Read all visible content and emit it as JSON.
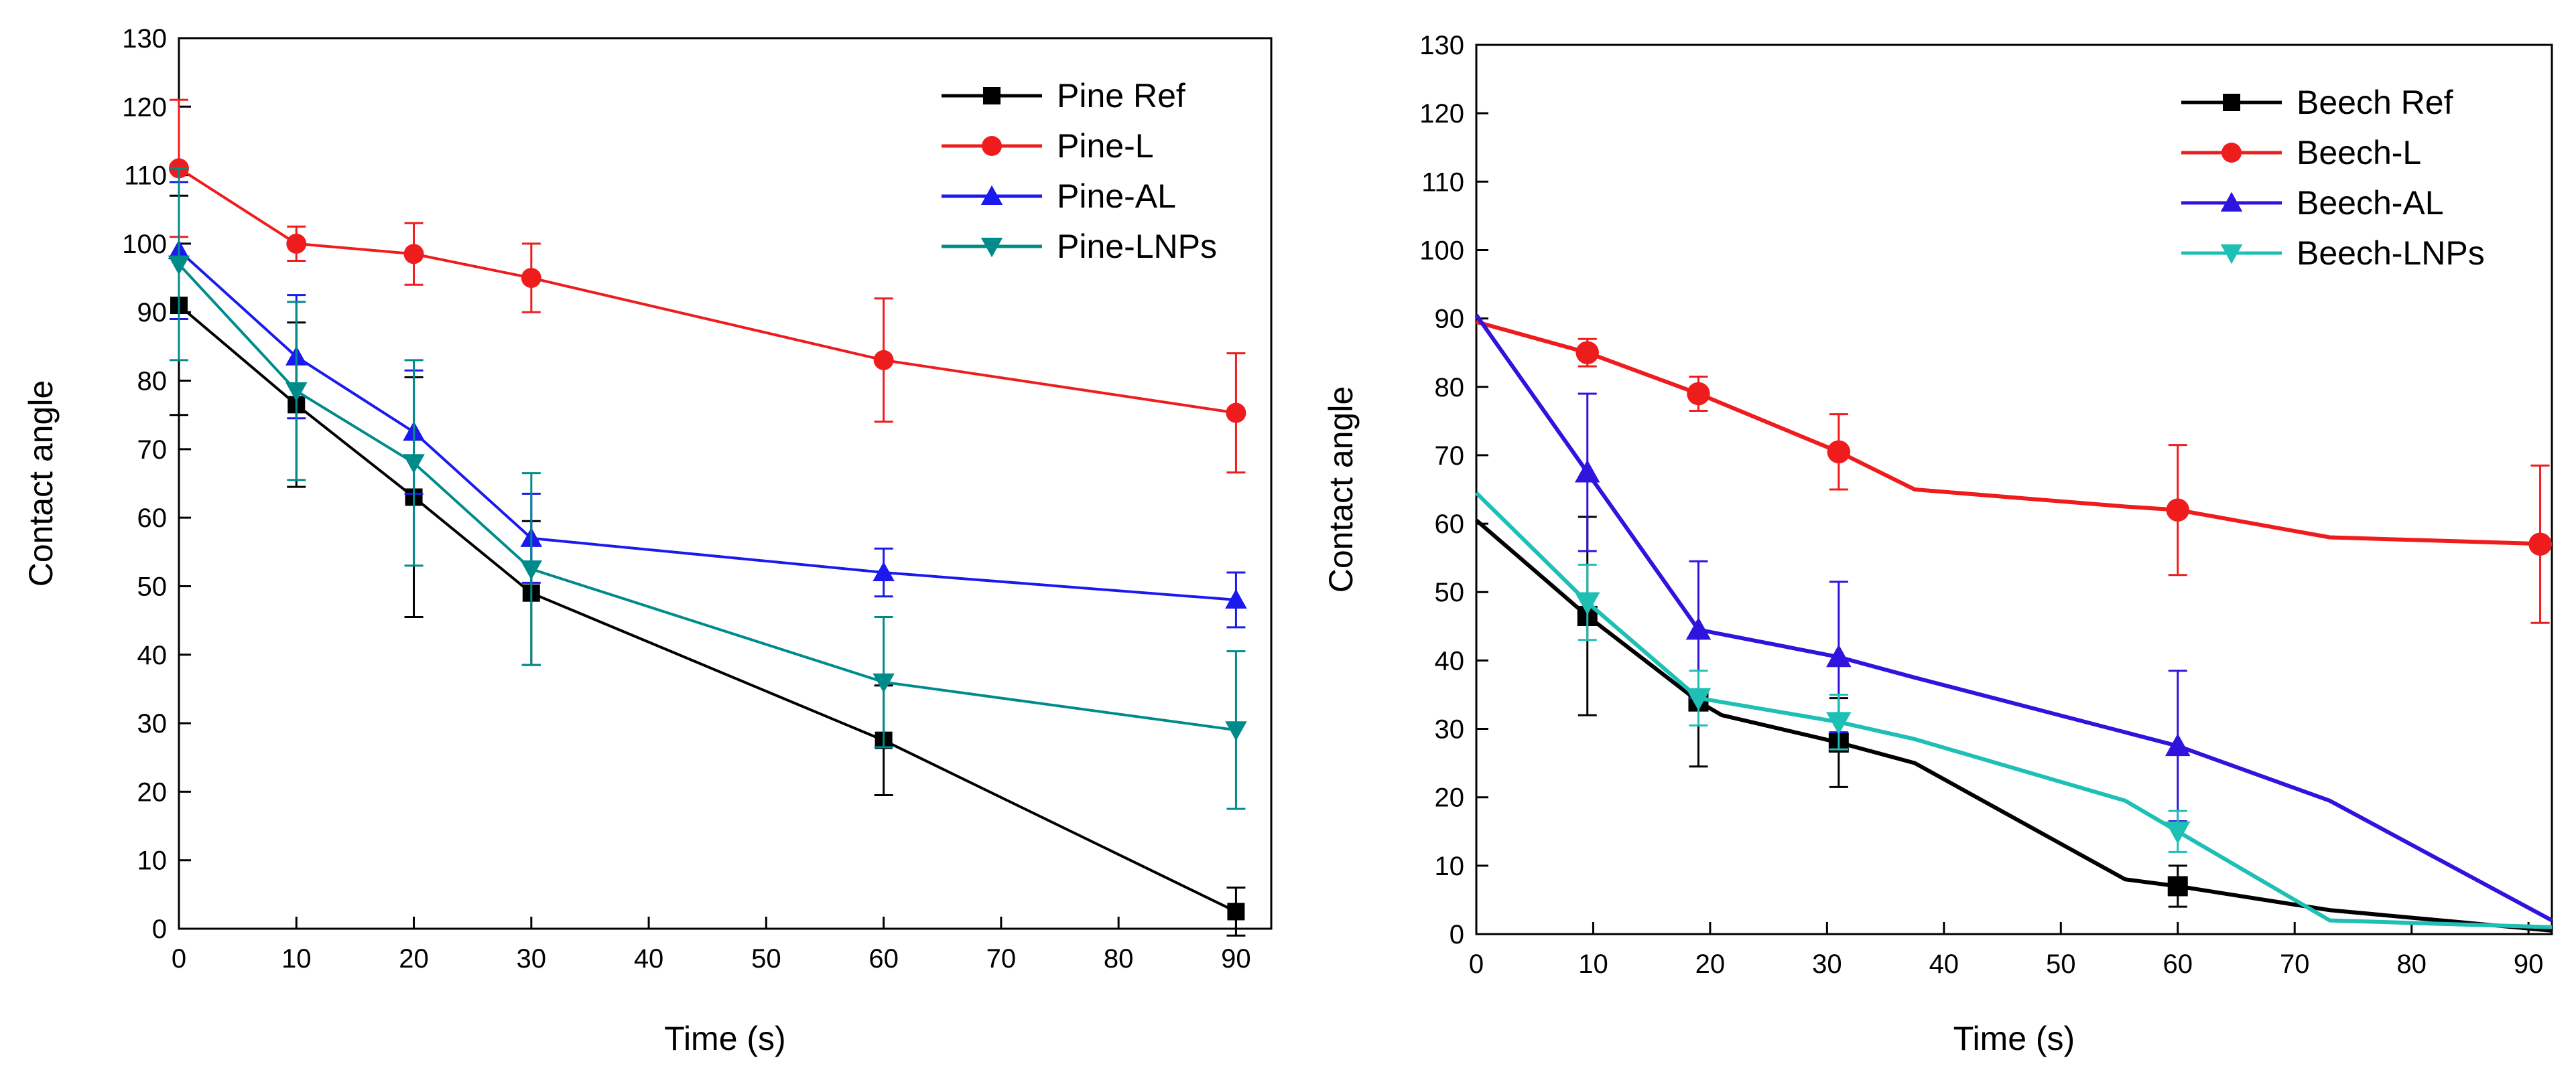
{
  "chart_data": [
    {
      "type": "line",
      "xlabel": "Time (s)",
      "ylabel": "Contact angle",
      "xlim": [
        0,
        93
      ],
      "ylim": [
        0,
        130
      ],
      "xticks": [
        0,
        10,
        20,
        30,
        40,
        50,
        60,
        70,
        80,
        90
      ],
      "yticks": [
        0,
        10,
        20,
        30,
        40,
        50,
        60,
        70,
        80,
        90,
        100,
        110,
        120,
        130
      ],
      "legend_position": "top-right",
      "grid": false,
      "series": [
        {
          "name": "Pine Ref",
          "color": "#000000",
          "marker": "square",
          "points": [
            [
              0,
              91
            ],
            [
              10,
              76.5
            ],
            [
              20,
              63
            ],
            [
              30,
              49
            ],
            [
              60,
              27.5
            ],
            [
              90,
              2.5
            ]
          ],
          "errors": [
            [
              0,
              91,
              16
            ],
            [
              10,
              76.5,
              12
            ],
            [
              20,
              63,
              17.5
            ],
            [
              30,
              49,
              10.5
            ],
            [
              60,
              27.5,
              8
            ],
            [
              90,
              2.5,
              3.5
            ]
          ]
        },
        {
          "name": "Pine-L",
          "color": "#ee1c1c",
          "marker": "circle",
          "points": [
            [
              0,
              111
            ],
            [
              10,
              100
            ],
            [
              20,
              98.5
            ],
            [
              30,
              95
            ],
            [
              60,
              83
            ],
            [
              90,
              75.3
            ]
          ],
          "errors": [
            [
              0,
              111,
              10
            ],
            [
              10,
              100,
              2.5
            ],
            [
              20,
              98.5,
              4.5
            ],
            [
              30,
              95,
              5
            ],
            [
              60,
              83,
              9
            ],
            [
              90,
              75.3,
              8.7
            ]
          ]
        },
        {
          "name": "Pine-AL",
          "color": "#1a1aee",
          "marker": "triangle-up",
          "points": [
            [
              0,
              99
            ],
            [
              10,
              83.5
            ],
            [
              20,
              72.5
            ],
            [
              30,
              57
            ],
            [
              60,
              52
            ],
            [
              90,
              48
            ]
          ],
          "errors": [
            [
              0,
              99,
              10
            ],
            [
              10,
              83.5,
              9
            ],
            [
              20,
              72.5,
              9
            ],
            [
              30,
              57,
              6.5
            ],
            [
              60,
              52,
              3.5
            ],
            [
              90,
              48,
              4
            ]
          ]
        },
        {
          "name": "Pine-LNPs",
          "color": "#008b8b",
          "marker": "triangle-down",
          "points": [
            [
              0,
              97
            ],
            [
              10,
              78.5
            ],
            [
              20,
              68
            ],
            [
              30,
              52.5
            ],
            [
              60,
              36
            ],
            [
              90,
              29
            ]
          ],
          "errors": [
            [
              0,
              97,
              14
            ],
            [
              10,
              78.5,
              13
            ],
            [
              20,
              68,
              15
            ],
            [
              30,
              52.5,
              14
            ],
            [
              60,
              36,
              9.5
            ],
            [
              90,
              29,
              11.5
            ]
          ]
        }
      ]
    },
    {
      "type": "line",
      "xlabel": "Time (s)",
      "ylabel": "Contact angle",
      "xlim": [
        0,
        92
      ],
      "ylim": [
        0,
        130
      ],
      "xticks": [
        0,
        10,
        20,
        30,
        40,
        50,
        60,
        70,
        80,
        90
      ],
      "yticks": [
        0,
        10,
        20,
        30,
        40,
        50,
        60,
        70,
        80,
        90,
        100,
        110,
        120,
        130
      ],
      "legend_position": "top-right",
      "grid": false,
      "series": [
        {
          "name": "Beech Ref",
          "color": "#000000",
          "marker": "square",
          "points": [
            [
              0,
              60.5
            ],
            [
              9.5,
              46.5
            ],
            [
              19,
              34
            ],
            [
              21,
              32
            ],
            [
              31,
              28
            ],
            [
              37.5,
              25
            ],
            [
              55.5,
              8
            ],
            [
              60,
              7
            ],
            [
              73,
              3.5
            ],
            [
              92,
              0.5
            ]
          ],
          "markers": [
            [
              9.5,
              46.5
            ],
            [
              19,
              34
            ],
            [
              31,
              28
            ],
            [
              60,
              7
            ]
          ],
          "errors": [
            [
              9.5,
              46.5,
              14.5
            ],
            [
              19,
              34,
              9.5
            ],
            [
              31,
              28,
              6.5
            ],
            [
              60,
              7,
              3
            ]
          ]
        },
        {
          "name": "Beech-L",
          "color": "#ee1c1c",
          "marker": "circle",
          "points": [
            [
              0,
              89.5
            ],
            [
              9.5,
              85
            ],
            [
              19,
              79
            ],
            [
              31,
              70.5
            ],
            [
              37.5,
              65
            ],
            [
              55.5,
              62.5
            ],
            [
              60,
              62
            ],
            [
              73,
              58
            ],
            [
              92,
              57
            ]
          ],
          "markers": [
            [
              9.5,
              85
            ],
            [
              19,
              79
            ],
            [
              31,
              70.5
            ],
            [
              60,
              62
            ],
            [
              91,
              57
            ]
          ],
          "errors": [
            [
              9.5,
              85,
              2
            ],
            [
              19,
              79,
              2.5
            ],
            [
              31,
              70.5,
              5.5
            ],
            [
              60,
              62,
              9.5
            ],
            [
              91,
              57,
              11.5
            ]
          ]
        },
        {
          "name": "Beech-AL",
          "color": "#2e14dc",
          "marker": "triangle-up",
          "points": [
            [
              0,
              90.5
            ],
            [
              9.5,
              67.5
            ],
            [
              19,
              44.5
            ],
            [
              31,
              40.5
            ],
            [
              37.5,
              37.5
            ],
            [
              55.5,
              29.5
            ],
            [
              60,
              27.5
            ],
            [
              73,
              19.5
            ],
            [
              92,
              2
            ]
          ],
          "markers": [
            [
              9.5,
              67.5
            ],
            [
              19,
              44.5
            ],
            [
              31,
              40.5
            ],
            [
              60,
              27.5
            ]
          ],
          "errors": [
            [
              9.5,
              67.5,
              11.5
            ],
            [
              19,
              44.5,
              10
            ],
            [
              31,
              40.5,
              11
            ],
            [
              60,
              27.5,
              11
            ]
          ]
        },
        {
          "name": "Beech-LNPs",
          "color": "#1ebfb4",
          "marker": "triangle-down",
          "points": [
            [
              0,
              64.5
            ],
            [
              9.5,
              48.5
            ],
            [
              19,
              34.5
            ],
            [
              31,
              31
            ],
            [
              37.5,
              28.5
            ],
            [
              55.5,
              19.5
            ],
            [
              60,
              15
            ],
            [
              73,
              2
            ],
            [
              92,
              1
            ]
          ],
          "markers": [
            [
              9.5,
              48.5
            ],
            [
              19,
              34.5
            ],
            [
              31,
              31
            ],
            [
              60,
              15
            ]
          ],
          "errors": [
            [
              9.5,
              48.5,
              5.5
            ],
            [
              19,
              34.5,
              4
            ],
            [
              31,
              31,
              4
            ],
            [
              60,
              15,
              3
            ]
          ]
        }
      ]
    }
  ]
}
